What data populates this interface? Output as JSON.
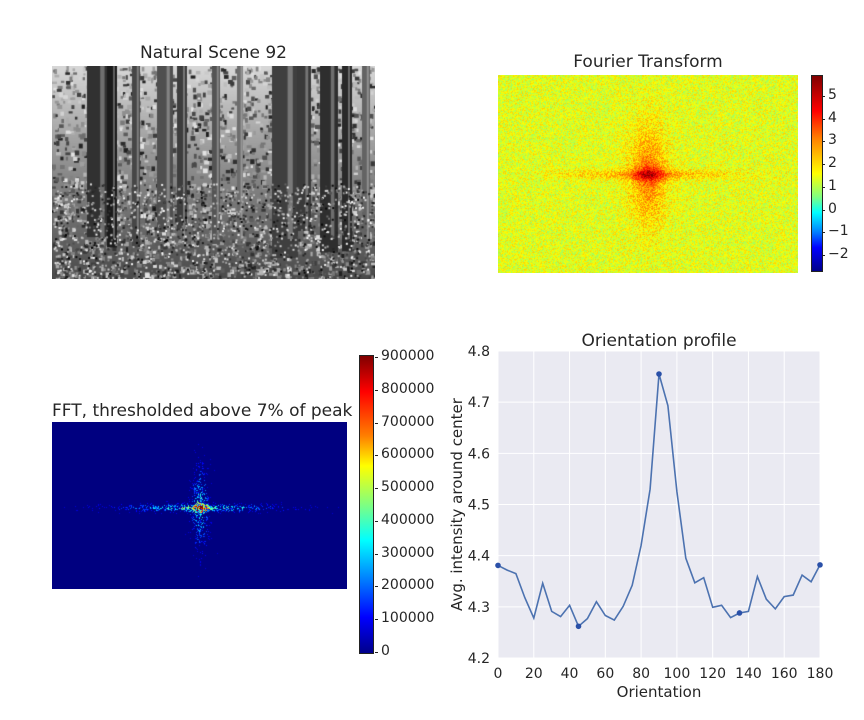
{
  "panels": {
    "scene": {
      "title": "Natural Scene 92"
    },
    "fourier": {
      "title": "Fourier Transform",
      "colorbar_ticks": [
        "5",
        "4",
        "3",
        "2",
        "1",
        "0",
        "−1",
        "−2"
      ]
    },
    "threshold": {
      "title": "FFT, thresholded above 7% of peak",
      "colorbar_ticks": [
        "900000",
        "800000",
        "700000",
        "600000",
        "500000",
        "400000",
        "300000",
        "200000",
        "100000",
        "0"
      ]
    }
  },
  "chart_data": {
    "type": "line",
    "title": "Orientation profile",
    "xlabel": "Orientation",
    "ylabel": "Avg. intensity around center",
    "xlim": [
      0,
      180
    ],
    "ylim": [
      4.2,
      4.8
    ],
    "xticks": [
      "0",
      "20",
      "40",
      "60",
      "80",
      "100",
      "120",
      "140",
      "160",
      "180"
    ],
    "yticks": [
      "4.2",
      "4.3",
      "4.4",
      "4.5",
      "4.6",
      "4.7",
      "4.8"
    ],
    "grid": true,
    "series": [
      {
        "x": [
          0,
          5,
          10,
          15,
          20,
          25,
          30,
          35,
          40,
          45,
          50,
          55,
          60,
          65,
          70,
          75,
          80,
          85,
          90,
          95,
          100,
          105,
          110,
          115,
          120,
          125,
          130,
          135,
          140,
          145,
          150,
          155,
          160,
          165,
          170,
          175,
          180
        ],
        "values": [
          4.381,
          4.372,
          4.365,
          4.318,
          4.278,
          4.346,
          4.291,
          4.281,
          4.303,
          4.262,
          4.277,
          4.31,
          4.283,
          4.274,
          4.301,
          4.342,
          4.42,
          4.53,
          4.755,
          4.693,
          4.525,
          4.395,
          4.347,
          4.357,
          4.299,
          4.303,
          4.279,
          4.288,
          4.291,
          4.359,
          4.315,
          4.296,
          4.32,
          4.323,
          4.362,
          4.349,
          4.382
        ]
      }
    ],
    "markers": [
      {
        "x": 0,
        "y": 4.381
      },
      {
        "x": 45,
        "y": 4.262
      },
      {
        "x": 90,
        "y": 4.755
      },
      {
        "x": 135,
        "y": 4.288
      },
      {
        "x": 180,
        "y": 4.382
      }
    ],
    "colors": {
      "line": "#4c72b0",
      "marker": "#2a50a8",
      "background": "#eaeaf2",
      "grid": "#ffffff"
    }
  }
}
